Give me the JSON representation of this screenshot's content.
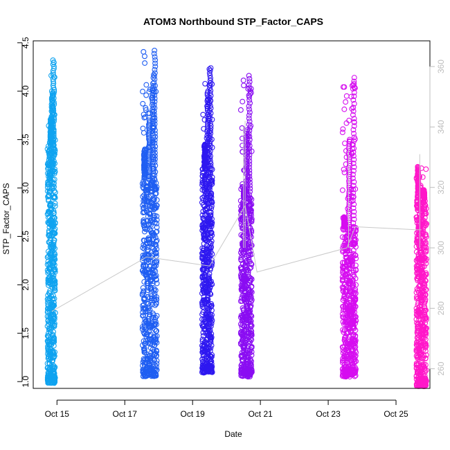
{
  "chart_data": {
    "type": "scatter",
    "title": "ATOM3 Northbound STP_Factor_CAPS",
    "xlabel": "Date",
    "ylabel": "STP_Factor_CAPS",
    "x_ticks": [
      "Oct 15",
      "Oct 17",
      "Oct 19",
      "Oct 21",
      "Oct 23",
      "Oct 25"
    ],
    "x_range_days": [
      14.3,
      26.0
    ],
    "x_tick_days": [
      15,
      17,
      19,
      21,
      23,
      25
    ],
    "ylim": [
      0.93,
      4.52
    ],
    "y_ticks": [
      "1.0",
      "1.5",
      "2.0",
      "2.5",
      "3.0",
      "3.5",
      "4.0",
      "4.5"
    ],
    "y_tick_values": [
      1.0,
      1.5,
      2.0,
      2.5,
      3.0,
      3.5,
      4.0,
      4.5
    ],
    "y2_ticks": [
      "260",
      "280",
      "300",
      "320",
      "340",
      "360"
    ],
    "y2_tick_values": [
      260,
      280,
      300,
      320,
      340,
      360
    ],
    "y2lim": [
      253.5,
      368.5
    ],
    "grid": false,
    "series": [
      {
        "color": "#0fa3f0",
        "x_start": 14.72,
        "x_end": 14.95,
        "y_min": 0.98,
        "y_max": 4.32,
        "dense_max": 3.45,
        "extra_peaks": [
          [
            14.82,
            3.72
          ],
          [
            14.9,
            4.32
          ],
          [
            14.86,
            4.0
          ]
        ]
      },
      {
        "color": "#1f5ef2",
        "x_start": 17.52,
        "x_end": 17.95,
        "y_min": 1.05,
        "y_max": 4.42,
        "dense_max": 3.1,
        "extra_peaks": [
          [
            17.58,
            3.4
          ],
          [
            17.72,
            3.7
          ],
          [
            17.83,
            4.08
          ],
          [
            17.88,
            4.42
          ]
        ]
      },
      {
        "color": "#2e18f0",
        "x_start": 19.28,
        "x_end": 19.58,
        "y_min": 1.09,
        "y_max": 4.24,
        "dense_max": 3.2,
        "extra_peaks": [
          [
            19.36,
            3.45
          ],
          [
            19.45,
            4.0
          ],
          [
            19.52,
            4.24
          ]
        ]
      },
      {
        "color": "#8a0df2",
        "x_start": 20.42,
        "x_end": 20.75,
        "y_min": 1.05,
        "y_max": 4.16,
        "dense_max": 2.9,
        "extra_peaks": [
          [
            20.52,
            3.0
          ],
          [
            20.6,
            3.6
          ],
          [
            20.68,
            4.16
          ]
        ]
      },
      {
        "color": "#d60df0",
        "x_start": 23.42,
        "x_end": 23.82,
        "y_min": 1.05,
        "y_max": 4.14,
        "dense_max": 2.6,
        "extra_peaks": [
          [
            23.48,
            2.7
          ],
          [
            23.62,
            3.5
          ],
          [
            23.75,
            4.14
          ]
        ]
      },
      {
        "color": "#ff17c9",
        "x_start": 25.6,
        "x_end": 25.9,
        "y_min": 0.95,
        "y_max": 3.22,
        "dense_max": 2.9,
        "extra_peaks": [
          [
            25.65,
            3.22
          ],
          [
            25.82,
            2.98
          ]
        ]
      }
    ],
    "secondary_line": {
      "color": "#c8c8c8",
      "points": [
        [
          14.85,
          279
        ],
        [
          17.65,
          297
        ],
        [
          19.5,
          294
        ],
        [
          20.55,
          314
        ],
        [
          20.9,
          292
        ],
        [
          23.55,
          300
        ],
        [
          23.8,
          307
        ],
        [
          25.62,
          306
        ],
        [
          25.75,
          306
        ]
      ],
      "spikes": [
        [
          20.5,
          340
        ],
        [
          20.55,
          342
        ],
        [
          23.6,
          333
        ],
        [
          25.7,
          331
        ]
      ]
    }
  }
}
